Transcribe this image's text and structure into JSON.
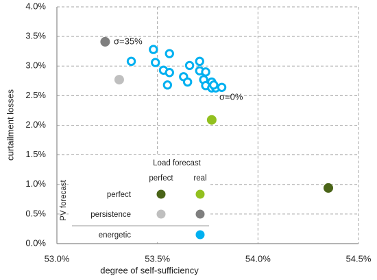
{
  "chart_data": {
    "type": "scatter",
    "x_label": "degree of self-sufficiency",
    "y_label": "curtailment losses",
    "xlim": [
      53.0,
      54.5
    ],
    "xticks": [
      {
        "value": 53.0,
        "label": "53.0%"
      },
      {
        "value": 53.5,
        "label": "53.5%"
      },
      {
        "value": 54.0,
        "label": "54.0%"
      },
      {
        "value": 54.5,
        "label": "54.5%"
      }
    ],
    "ylim": [
      0,
      4
    ],
    "yticks": [
      {
        "value": 0,
        "label": "0.0%"
      },
      {
        "value": 0.5,
        "label": "0.5%"
      },
      {
        "value": 1,
        "label": "1.0%"
      },
      {
        "value": 1.5,
        "label": "1.5%"
      },
      {
        "value": 2,
        "label": "2.0%"
      },
      {
        "value": 2.5,
        "label": "2.5%"
      },
      {
        "value": 3,
        "label": "3.0%"
      },
      {
        "value": 3.5,
        "label": "3.5%"
      },
      {
        "value": 4,
        "label": "4.0%"
      }
    ],
    "grid": true,
    "series": [
      {
        "color": "#4a6418",
        "filled": true,
        "x": [
          54.35
        ],
        "values": [
          0.94
        ]
      },
      {
        "color": "#92c01f",
        "filled": true,
        "x": [
          53.77
        ],
        "values": [
          2.09
        ]
      },
      {
        "color": "#bfbfbf",
        "filled": true,
        "x": [
          53.31
        ],
        "values": [
          2.77
        ]
      },
      {
        "color": "#7f7f7f",
        "filled": true,
        "x": [
          53.24
        ],
        "values": [
          3.41
        ]
      },
      {
        "color": "#00b0f0",
        "filled": false,
        "x": [
          53.37,
          53.48,
          53.56,
          53.49,
          53.53,
          53.56,
          53.55,
          53.63,
          53.65,
          53.66,
          53.71,
          53.71,
          53.74,
          53.73,
          53.77,
          53.74,
          53.77,
          53.79,
          53.82,
          53.78
        ],
        "values": [
          3.08,
          3.28,
          3.21,
          3.06,
          2.93,
          2.89,
          2.68,
          2.82,
          2.73,
          3.01,
          3.08,
          2.92,
          2.9,
          2.77,
          2.73,
          2.67,
          2.63,
          2.63,
          2.64,
          2.68
        ]
      }
    ],
    "annotations": [
      "σ=35%",
      "σ=0%"
    ],
    "legend": {
      "title": "Load forecast",
      "columns": [
        "perfect",
        "real"
      ],
      "row_title": "PV forecast",
      "rows": [
        "perfect",
        "persistence",
        "energetic"
      ]
    }
  }
}
